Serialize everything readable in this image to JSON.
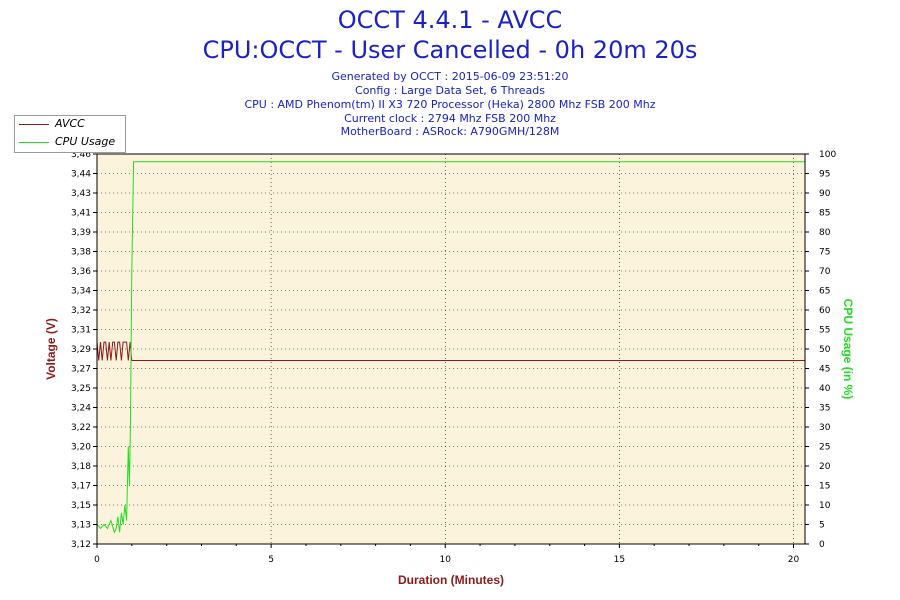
{
  "header": {
    "title": "OCCT 4.4.1 - AVCC",
    "subtitle": "CPU:OCCT - User Cancelled - 0h 20m 20s",
    "info_lines": [
      "Generated by OCCT : 2015-06-09 23:51:20",
      "Config : Large Data Set, 6 Threads",
      "CPU : AMD Phenom(tm) II X3 720 Processor (Heka) 2800 Mhz FSB 200 Mhz",
      "Current clock : 2794 Mhz FSB 200 Mhz",
      "MotherBoard : ASRock: A790GMH/128M"
    ]
  },
  "legend": [
    {
      "label": "AVCC",
      "color": "#8b1a1a"
    },
    {
      "label": "CPU Usage",
      "color": "#22dd22"
    }
  ],
  "colors": {
    "title": "#1b21c9",
    "plot_background": "#fbf3dc",
    "voltage_line": "#8b1a1a",
    "cpu_line": "#22dd22",
    "left_axis_title": "#8b1a1a",
    "right_axis_title": "#22dd22",
    "x_axis_title": "#8b1a1a",
    "grid": "#000000"
  },
  "chart_data": {
    "type": "line",
    "xlabel": "Duration (Minutes)",
    "ylabel": "Voltage (V)",
    "y2label": "CPU Usage (in %)",
    "xlim": [
      0,
      20.33
    ],
    "ylim": [
      3.12,
      3.46
    ],
    "y2lim": [
      0,
      100
    ],
    "x_ticks": [
      "0",
      "5",
      "10",
      "15",
      "20"
    ],
    "y_ticks": [
      "3,12",
      "3,13",
      "3,15",
      "3,17",
      "3,18",
      "3,20",
      "3,22",
      "3,24",
      "3,25",
      "3,27",
      "3,29",
      "3,31",
      "3,32",
      "3,34",
      "3,36",
      "3,38",
      "3,39",
      "3,41",
      "3,43",
      "3,44",
      "3,46"
    ],
    "y2_ticks": [
      "0",
      "5",
      "10",
      "15",
      "20",
      "25",
      "30",
      "35",
      "40",
      "45",
      "50",
      "55",
      "60",
      "65",
      "70",
      "75",
      "80",
      "85",
      "90",
      "95",
      "100"
    ],
    "grid": "dotted",
    "legend_position": "top-left",
    "series": [
      {
        "name": "AVCC",
        "axis": "left",
        "x": [
          0,
          0.05,
          0.1,
          0.15,
          0.2,
          0.25,
          0.3,
          0.35,
          0.4,
          0.45,
          0.5,
          0.55,
          0.6,
          0.65,
          0.7,
          0.75,
          0.8,
          0.85,
          0.9,
          0.95,
          1.0,
          1.05,
          1.1,
          5,
          10,
          15,
          20,
          20.33
        ],
        "y": [
          3.296,
          3.28,
          3.296,
          3.28,
          3.296,
          3.296,
          3.28,
          3.296,
          3.28,
          3.296,
          3.296,
          3.28,
          3.296,
          3.296,
          3.28,
          3.296,
          3.296,
          3.296,
          3.28,
          3.296,
          3.28,
          3.28,
          3.28,
          3.28,
          3.28,
          3.28,
          3.28,
          3.28
        ]
      },
      {
        "name": "CPU Usage",
        "axis": "right",
        "x": [
          0,
          0.1,
          0.2,
          0.3,
          0.4,
          0.5,
          0.55,
          0.6,
          0.65,
          0.7,
          0.75,
          0.8,
          0.85,
          0.9,
          0.93,
          0.96,
          1.0,
          1.05,
          1.1,
          1.5,
          2,
          3,
          4,
          5,
          6,
          7,
          8,
          9,
          10,
          11,
          12,
          13,
          14,
          15,
          16,
          17,
          18,
          19,
          20,
          20.33
        ],
        "y": [
          5,
          4,
          5,
          4,
          6,
          3,
          4,
          7,
          3,
          8,
          5,
          10,
          6,
          25,
          15,
          30,
          70,
          98,
          98,
          98,
          98,
          98,
          98,
          98,
          98,
          98,
          98,
          98,
          98,
          98,
          98,
          98,
          98,
          98,
          98,
          98,
          98,
          98,
          98,
          98
        ]
      }
    ]
  }
}
